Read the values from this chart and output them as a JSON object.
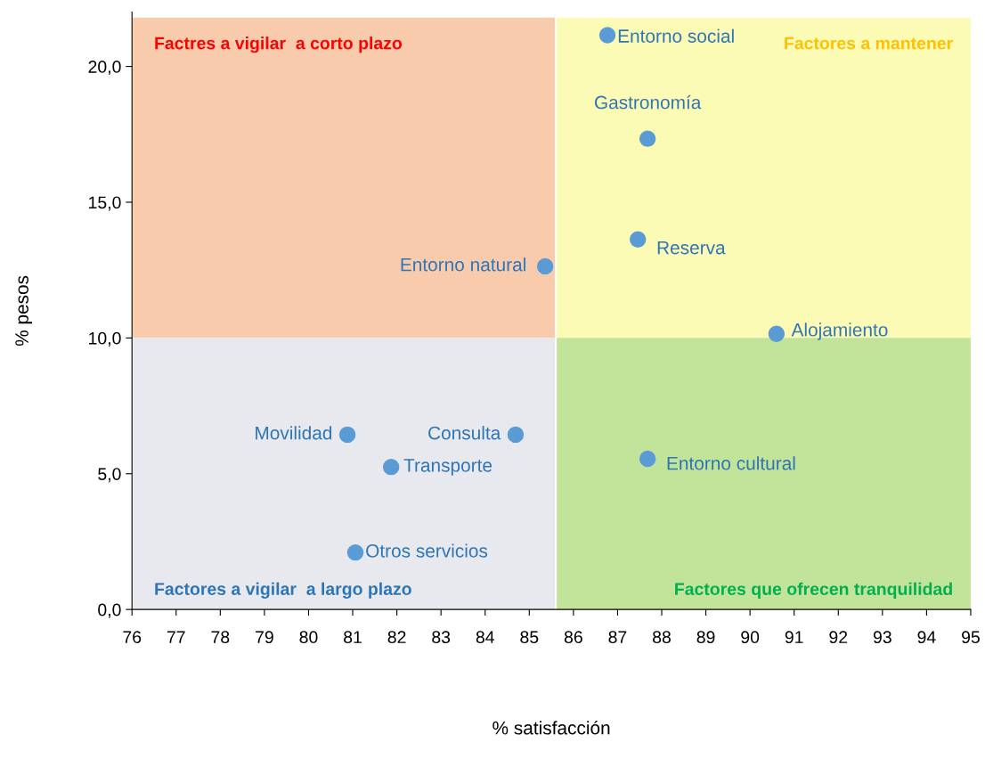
{
  "chart_data": {
    "type": "scatter",
    "xlabel": "% satisfacción",
    "ylabel": "% pesos",
    "xlim": [
      76,
      95
    ],
    "xticks": [
      76,
      77,
      78,
      79,
      80,
      81,
      82,
      83,
      84,
      85,
      86,
      87,
      88,
      89,
      90,
      91,
      92,
      93,
      94,
      95
    ],
    "ylim": [
      0,
      22
    ],
    "yticks": [
      {
        "value": 0,
        "label": "0,0"
      },
      {
        "value": 5,
        "label": "5,0"
      },
      {
        "value": 10,
        "label": "10,0"
      },
      {
        "value": 15,
        "label": "15,0"
      },
      {
        "value": 20,
        "label": "20,0"
      }
    ],
    "x": [
      86.77,
      87.68,
      87.46,
      85.36,
      90.6,
      80.88,
      84.69,
      81.87,
      87.68,
      81.06
    ],
    "series": [
      {
        "color": "#5b9bd5",
        "values": [
          21.15,
          17.34,
          13.63,
          12.64,
          10.15,
          6.44,
          6.44,
          5.25,
          5.55,
          2.1
        ]
      }
    ],
    "marker": "circle",
    "grid": false,
    "legend": false,
    "bands": [
      {
        "axis": "y",
        "from": 10,
        "to": 21.8,
        "color": "#f8cbad",
        "label": "Factres a vigilar  a corto plazo"
      },
      {
        "axis": "y",
        "from": 10,
        "to": 21.8,
        "color": "#fbfbb5",
        "label": "Factores a mantener"
      },
      {
        "axis": "y",
        "from": 0,
        "to": 10,
        "color": "#e7e9ee",
        "label": "Factores a vigilar  a largo plazo"
      },
      {
        "axis": "y",
        "from": 0,
        "to": 10,
        "color": "#c1e39a",
        "label": "Factores que ofrecen tranquilidad"
      }
    ],
    "ref_lines": [
      {
        "axis": "x",
        "value": 85.6,
        "color": "#ffffff"
      }
    ],
    "annotations": [
      {
        "text": "Entorno social",
        "x": 86.77,
        "y": 21.15
      },
      {
        "text": "Gastronomía",
        "x": 87.68,
        "y": 17.34
      },
      {
        "text": "Reserva",
        "x": 87.46,
        "y": 13.63
      },
      {
        "text": "Entorno natural",
        "x": 85.36,
        "y": 12.64
      },
      {
        "text": "Alojamiento",
        "x": 90.6,
        "y": 10.15
      },
      {
        "text": "Movilidad",
        "x": 80.88,
        "y": 6.44
      },
      {
        "text": "Consulta",
        "x": 84.69,
        "y": 6.44
      },
      {
        "text": "Transporte",
        "x": 81.87,
        "y": 5.25
      },
      {
        "text": "Entorno cultural",
        "x": 87.68,
        "y": 5.55
      },
      {
        "text": "Otros servicios",
        "x": 81.06,
        "y": 2.1
      }
    ]
  }
}
